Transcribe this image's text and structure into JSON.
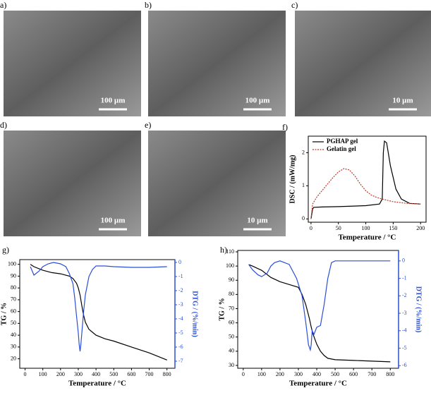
{
  "images": [
    {
      "label": "a)",
      "scale_bar": "100 µm"
    },
    {
      "label": "b)",
      "scale_bar": "100 µm"
    },
    {
      "label": "c)",
      "scale_bar": "10 µm"
    },
    {
      "label": "d)",
      "scale_bar": "100 µm"
    },
    {
      "label": "e)",
      "scale_bar": "10 µm"
    }
  ],
  "chart_data": [
    {
      "type": "line",
      "label": "f)",
      "xlabel": "Temperature / °C",
      "ylabel": "DSC / (mW/mg)",
      "xlim": [
        -5,
        210
      ],
      "ylim": [
        -0.1,
        2.5
      ],
      "xticks": [
        0,
        50,
        100,
        150,
        200
      ],
      "yticks": [
        0,
        1,
        2
      ],
      "legend": "upper left",
      "series": [
        {
          "name": "PGHAP gel",
          "color": "#000000",
          "dash": false,
          "x": [
            0,
            3,
            5,
            20,
            50,
            100,
            125,
            130,
            132,
            134,
            138,
            145,
            155,
            165,
            180,
            200
          ],
          "values": [
            0,
            0.3,
            0.35,
            0.36,
            0.37,
            0.4,
            0.45,
            0.6,
            2.0,
            2.35,
            2.3,
            1.6,
            0.9,
            0.6,
            0.47,
            0.45
          ]
        },
        {
          "name": "Gelatin gel",
          "color": "#c0392b",
          "dash": true,
          "x": [
            0,
            3,
            10,
            20,
            30,
            40,
            50,
            60,
            70,
            80,
            90,
            100,
            110,
            120,
            130,
            150,
            175,
            200
          ],
          "values": [
            0,
            0.45,
            0.65,
            0.85,
            1.05,
            1.25,
            1.42,
            1.52,
            1.48,
            1.3,
            1.05,
            0.85,
            0.72,
            0.65,
            0.6,
            0.52,
            0.47,
            0.45
          ]
        }
      ]
    },
    {
      "type": "line",
      "label": "g)",
      "xlabel": "Temperature / °C",
      "ylabel": "TG / %",
      "y2label": "DTG / (%/min)",
      "xlim": [
        -30,
        845
      ],
      "ylim": [
        12,
        104
      ],
      "y2lim": [
        -7.5,
        0.2
      ],
      "xticks": [
        0,
        100,
        200,
        300,
        400,
        500,
        600,
        700,
        800
      ],
      "yticks": [
        20,
        30,
        40,
        50,
        60,
        70,
        80,
        90,
        100
      ],
      "y2ticks": [
        0,
        -1,
        -2,
        -3,
        -4,
        -5,
        -6,
        -7
      ],
      "series": [
        {
          "color": "#000000",
          "x": [
            30,
            50,
            100,
            150,
            200,
            250,
            270,
            290,
            300,
            310,
            320,
            330,
            340,
            360,
            400,
            450,
            500,
            600,
            700,
            800
          ],
          "values": [
            100,
            98,
            95,
            93,
            92,
            90,
            88,
            84,
            80,
            74,
            65,
            57,
            51,
            45,
            40,
            37,
            35,
            30,
            25,
            19
          ]
        },
        {
          "color": "#2a4fd6",
          "axis": "y2",
          "x": [
            30,
            50,
            80,
            100,
            130,
            160,
            200,
            230,
            250,
            270,
            280,
            290,
            300,
            305,
            310,
            315,
            320,
            330,
            340,
            360,
            380,
            400,
            450,
            500,
            600,
            700,
            800
          ],
          "values": [
            -0.3,
            -0.9,
            -0.6,
            -0.3,
            -0.1,
            0,
            -0.1,
            -0.3,
            -0.8,
            -1.5,
            -2.5,
            -3.8,
            -5,
            -5.8,
            -6.3,
            -5.8,
            -5,
            -3.5,
            -2.3,
            -1,
            -0.5,
            -0.25,
            -0.25,
            -0.3,
            -0.35,
            -0.35,
            -0.3
          ]
        }
      ]
    },
    {
      "type": "line",
      "label": "h)",
      "xlabel": "Temperature / °C",
      "ylabel": "TG / %",
      "y2label": "DTG / (%/min)",
      "xlim": [
        -30,
        845
      ],
      "ylim": [
        28,
        111
      ],
      "y2lim": [
        -6.15,
        0.6
      ],
      "xticks": [
        0,
        100,
        200,
        300,
        400,
        500,
        600,
        700,
        800
      ],
      "yticks": [
        30,
        40,
        50,
        60,
        70,
        80,
        90,
        100,
        110
      ],
      "y2ticks": [
        0,
        -1,
        -2,
        -3,
        -4,
        -5,
        -6
      ],
      "series": [
        {
          "color": "#000000",
          "x": [
            30,
            50,
            100,
            150,
            200,
            250,
            300,
            320,
            340,
            350,
            360,
            370,
            380,
            400,
            420,
            440,
            460,
            480,
            500,
            600,
            700,
            800
          ],
          "values": [
            101,
            100,
            97,
            92,
            89,
            87,
            85,
            80,
            73,
            68,
            63,
            57,
            52,
            45,
            40,
            37,
            35,
            34.5,
            34,
            33.5,
            33,
            32.5
          ]
        },
        {
          "color": "#2a4fd6",
          "axis": "y2",
          "x": [
            30,
            50,
            80,
            100,
            130,
            150,
            170,
            200,
            250,
            290,
            320,
            340,
            355,
            365,
            370,
            375,
            385,
            400,
            420,
            440,
            460,
            480,
            500,
            600,
            700,
            800
          ],
          "values": [
            -0.2,
            -0.5,
            -0.8,
            -0.9,
            -0.7,
            -0.3,
            -0.1,
            0,
            -0.2,
            -1,
            -2,
            -3.5,
            -4.8,
            -5.1,
            -4.8,
            -4,
            -4.2,
            -3.8,
            -3.7,
            -2.5,
            -1,
            -0.1,
            0,
            0,
            0,
            0
          ]
        }
      ]
    }
  ]
}
